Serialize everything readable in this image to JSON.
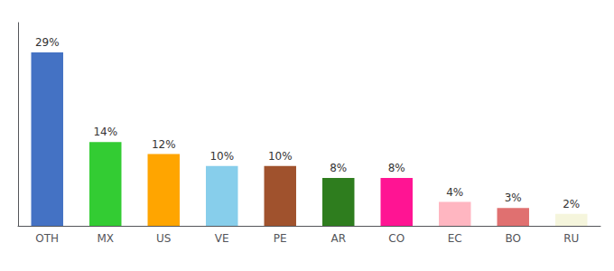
{
  "chart_data": {
    "type": "bar",
    "categories": [
      "OTH",
      "MX",
      "US",
      "VE",
      "PE",
      "AR",
      "CO",
      "EC",
      "BO",
      "RU"
    ],
    "values": [
      29,
      14,
      12,
      10,
      10,
      8,
      8,
      4,
      3,
      2
    ],
    "value_labels": [
      "29%",
      "14%",
      "12%",
      "10%",
      "10%",
      "8%",
      "8%",
      "4%",
      "3%",
      "2%"
    ],
    "data_labels": true,
    "colors": [
      "#4472C4",
      "#33CC33",
      "#FFA500",
      "#87CEEB",
      "#A0522D",
      "#2E7D1E",
      "#FF1493",
      "#FFB6C1",
      "#E07070",
      "#F5F5DC"
    ],
    "ylim": [
      0,
      34
    ],
    "tick_labels": "x",
    "grid": false
  }
}
